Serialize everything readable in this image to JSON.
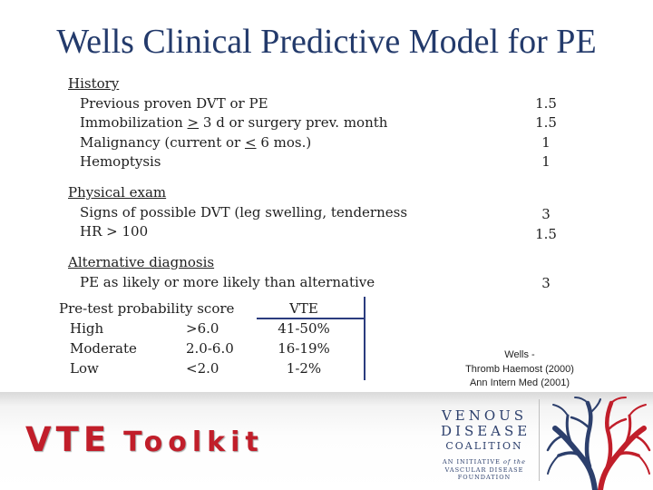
{
  "title": "Wells Clinical Predictive Model for PE",
  "history": {
    "heading": "History",
    "items": [
      {
        "parts": [
          "Previous proven DVT or PE"
        ],
        "points": "1.5"
      },
      {
        "parts": [
          "Immobilization ",
          ">",
          " 3 d or surgery prev. month"
        ],
        "points": "1.5"
      },
      {
        "parts": [
          "Malignancy (current or ",
          "<",
          " 6 mos.)"
        ],
        "points": "1"
      },
      {
        "parts": [
          "Hemoptysis"
        ],
        "points": "1"
      }
    ]
  },
  "physical": {
    "heading": "Physical exam",
    "items": [
      {
        "label": "Signs of possible DVT (leg swelling, tenderness",
        "points": "3"
      },
      {
        "label": "HR > 100",
        "points": "1.5"
      }
    ]
  },
  "alternative": {
    "heading": "Alternative diagnosis",
    "items": [
      {
        "label": "PE as likely or more likely than alternative",
        "points": "3"
      }
    ]
  },
  "probability": {
    "header": {
      "label": "Pre-test probability score",
      "vte": "VTE"
    },
    "rows": [
      {
        "level": "High",
        "score": ">6.0",
        "vte": "41-50%"
      },
      {
        "level": "Moderate",
        "score": "2.0-6.0",
        "vte": "16-19%"
      },
      {
        "level": "Low",
        "score": "<2.0",
        "vte": "1-2%"
      }
    ]
  },
  "citation": {
    "line1": "Wells -",
    "line2": "Thromb Haemost (2000)",
    "line3": "Ann Intern Med (2001)"
  },
  "footer": {
    "toolkit_big": "VTE",
    "toolkit_small": "Toolkit",
    "brand_line1": "VENOUS",
    "brand_line2": "DISEASE",
    "brand_line3": "COALITION",
    "brand_sub1_a": "AN INITIATIVE ",
    "brand_sub1_b": "of the",
    "brand_sub2": "VASCULAR DISEASE",
    "brand_sub3": "FOUNDATION"
  },
  "colors": {
    "title": "#233a6b",
    "accent_red": "#c11e2a",
    "box_line": "#2b3c7e",
    "tree_blue": "#2c3f6c"
  }
}
